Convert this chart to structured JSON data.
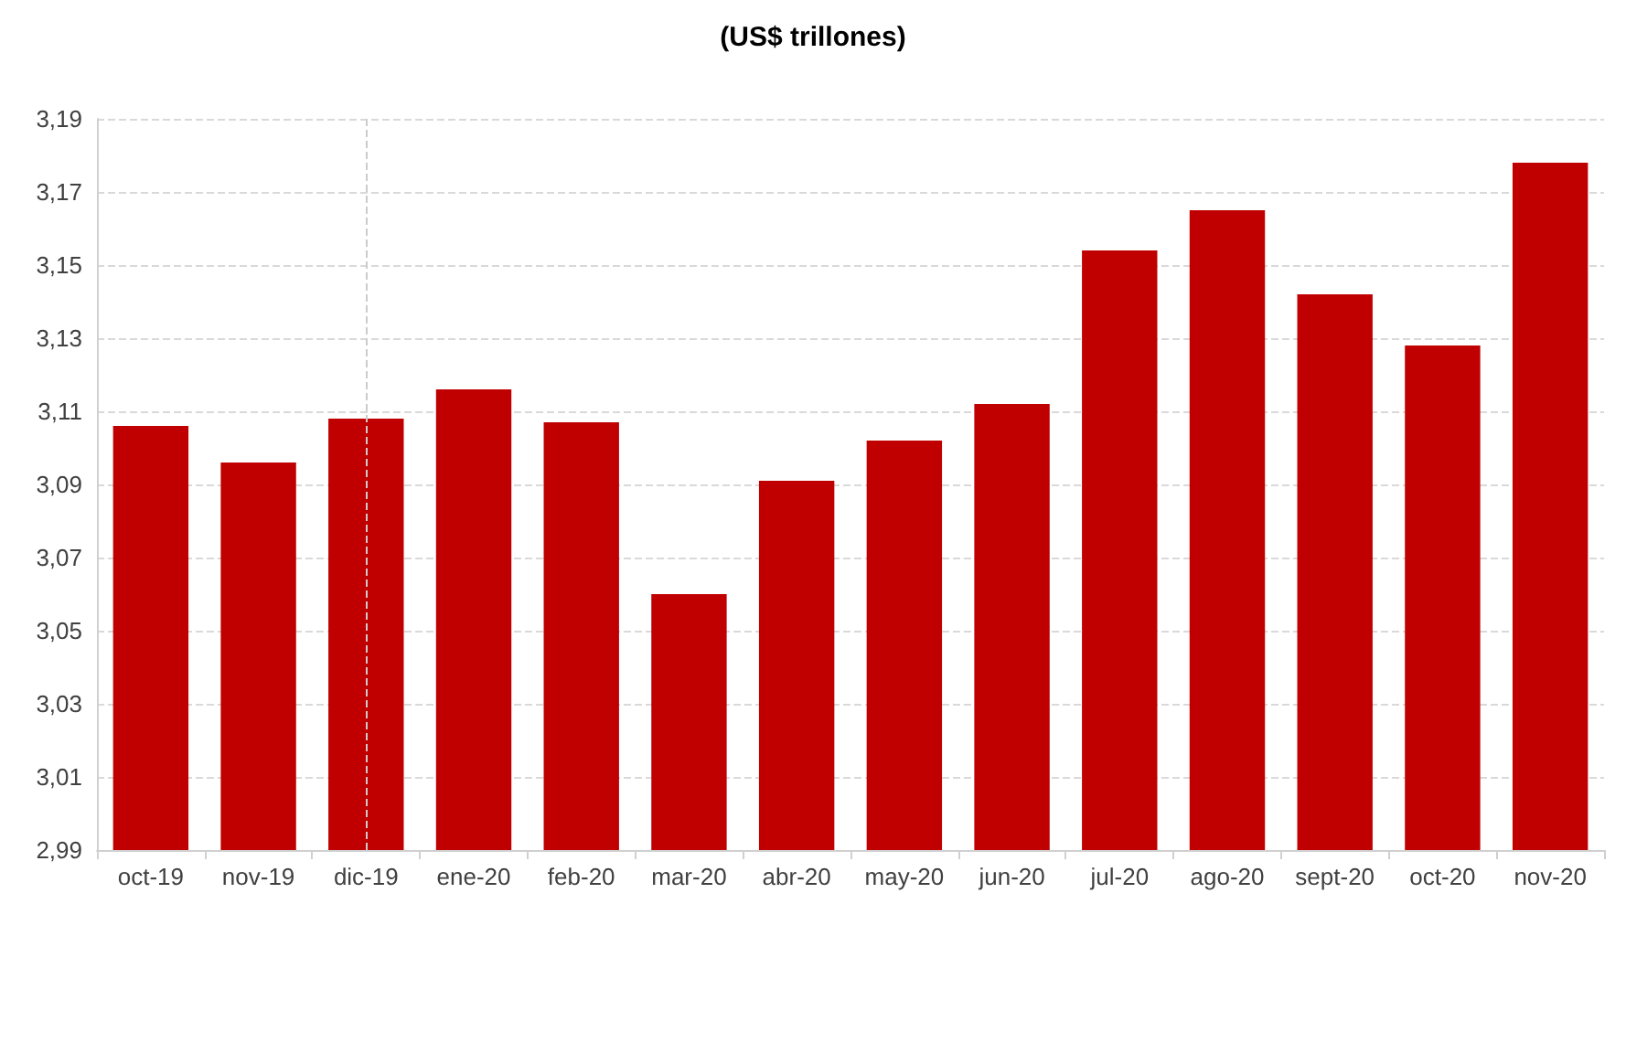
{
  "chart_data": {
    "type": "bar",
    "title": "(US$ trillones)",
    "categories": [
      "oct-19",
      "nov-19",
      "dic-19",
      "ene-20",
      "feb-20",
      "mar-20",
      "abr-20",
      "may-20",
      "jun-20",
      "jul-20",
      "ago-20",
      "sept-20",
      "oct-20",
      "nov-20"
    ],
    "values": [
      3.106,
      3.096,
      3.108,
      3.116,
      3.107,
      3.06,
      3.091,
      3.102,
      3.112,
      3.154,
      3.165,
      3.142,
      3.128,
      3.178
    ],
    "color": "#c00000",
    "ylim": [
      2.99,
      3.19
    ],
    "yticks": [
      {
        "value": 2.99,
        "label": "2,99"
      },
      {
        "value": 3.01,
        "label": "3,01"
      },
      {
        "value": 3.03,
        "label": "3,03"
      },
      {
        "value": 3.05,
        "label": "3,05"
      },
      {
        "value": 3.07,
        "label": "3,07"
      },
      {
        "value": 3.09,
        "label": "3,09"
      },
      {
        "value": 3.11,
        "label": "3,11"
      },
      {
        "value": 3.13,
        "label": "3,13"
      },
      {
        "value": 3.15,
        "label": "3,15"
      },
      {
        "value": 3.17,
        "label": "3,17"
      },
      {
        "value": 3.19,
        "label": "3,19"
      }
    ],
    "ref_lines": [
      {
        "axis": "x",
        "value": "dic-19",
        "color": "#cccccc",
        "line_style": "dashed"
      }
    ],
    "grid": "y"
  }
}
